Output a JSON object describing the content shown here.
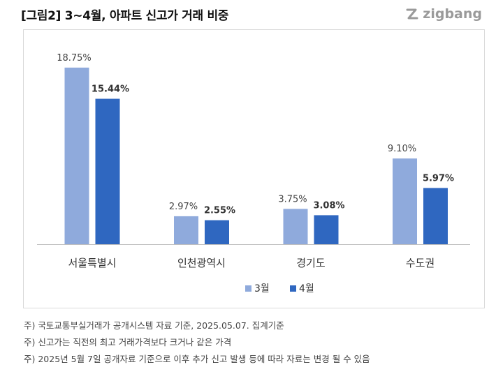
{
  "header": {
    "title": "[그림2] 3~4월, 아파트 신고가 거래 비중",
    "brand": "zigbang"
  },
  "colors": {
    "series_1": "#8faadc",
    "series_2": "#2f67c0",
    "axis": "#bfbfbf",
    "brand": "#9a9a9a"
  },
  "chart_data": {
    "type": "bar",
    "title": "[그림2] 3~4월, 아파트 신고가 거래 비중",
    "xlabel": "",
    "ylabel": "",
    "categories": [
      "서울특별시",
      "인천광역시",
      "경기도",
      "수도권"
    ],
    "series": [
      {
        "name": "3월",
        "values": [
          18.75,
          2.97,
          3.75,
          9.1
        ],
        "labels": [
          "18.75%",
          "2.97%",
          "3.75%",
          "9.10%"
        ]
      },
      {
        "name": "4월",
        "values": [
          15.44,
          2.55,
          3.08,
          5.97
        ],
        "labels": [
          "15.44%",
          "2.55%",
          "3.08%",
          "5.97%"
        ]
      }
    ],
    "ylim": [
      0,
      20
    ],
    "grid": false,
    "legend": "bottom-center"
  },
  "notes": [
    "주) 국토교통부실거래가 공개시스템 자료 기준, 2025.05.07. 집계기준",
    "주) 신고가는 직전의 최고 거래가격보다 크거나 같은 가격",
    "주) 2025년 5월 7일 공개자료 기준으로 이후 추가 신고 발생 등에 따라 자료는 변경 될 수 있음"
  ]
}
